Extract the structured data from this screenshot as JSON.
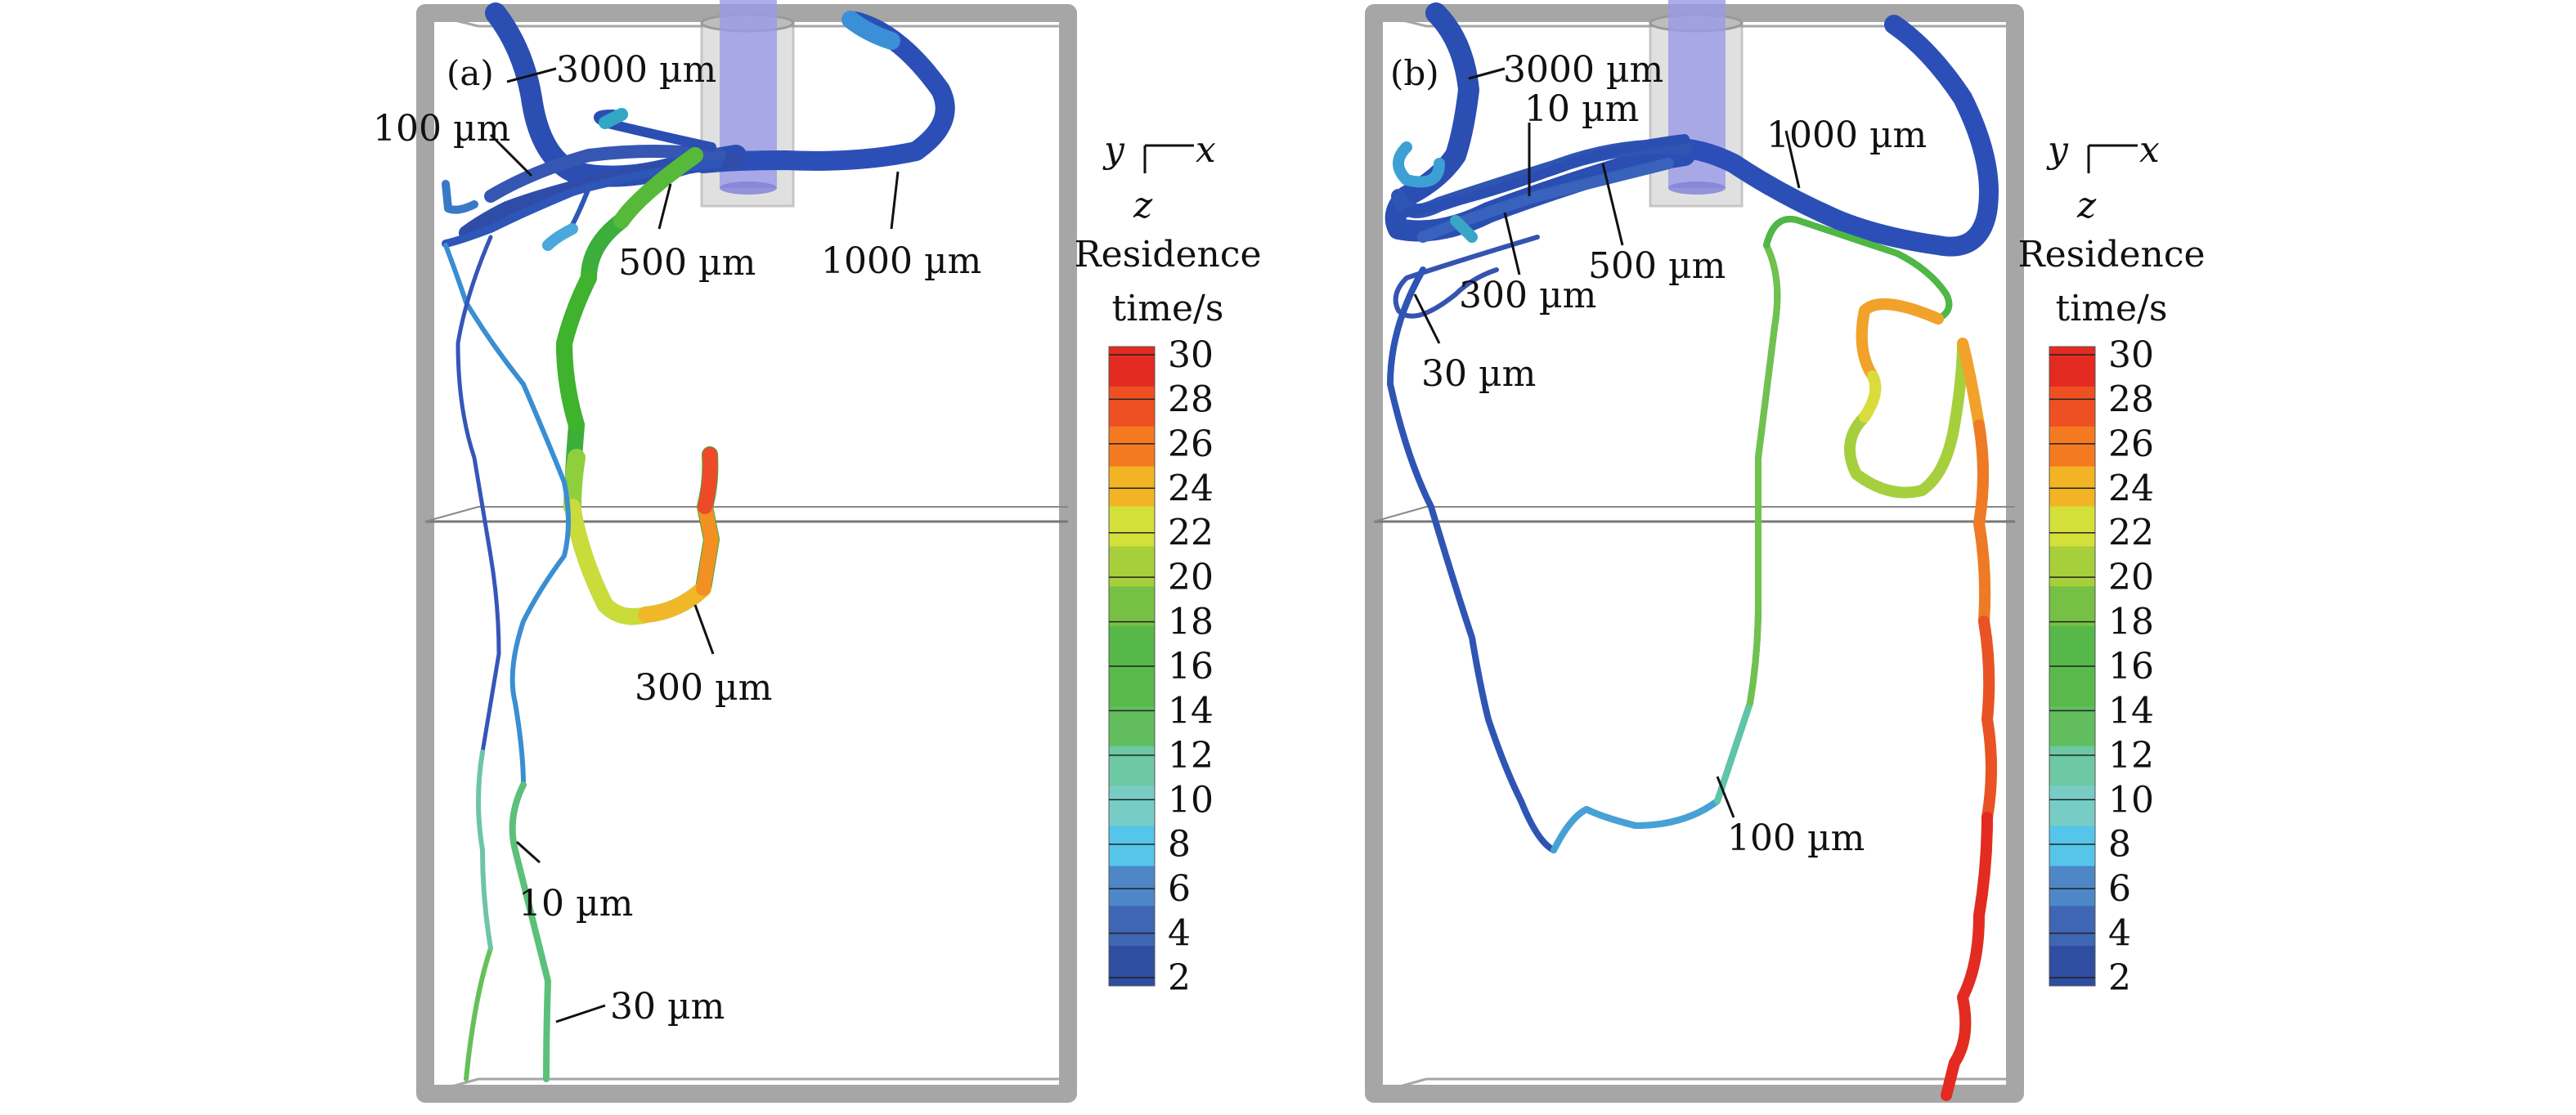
{
  "panels": [
    {
      "tag": "(a)",
      "axes": {
        "x": "x",
        "y": "y",
        "z": "z"
      },
      "colorbar": {
        "title_line1": "Residence",
        "title_line2": "time/s"
      },
      "trajectory_labels": [
        "3000 µm",
        "100 µm",
        "500 µm",
        "1000 µm",
        "300 µm",
        "10 µm",
        "30 µm"
      ]
    },
    {
      "tag": "(b)",
      "axes": {
        "x": "x",
        "y": "y",
        "z": "z"
      },
      "colorbar": {
        "title_line1": "Residence",
        "title_line2": "time/s"
      },
      "trajectory_labels": [
        "3000 µm",
        "10 µm",
        "1000 µm",
        "500 µm",
        "300 µm",
        "30 µm",
        "100 µm"
      ]
    }
  ],
  "colorbar_ticks": [
    "30",
    "28",
    "26",
    "24",
    "22",
    "20",
    "18",
    "16",
    "14",
    "12",
    "10",
    "8",
    "6",
    "4",
    "2"
  ],
  "colorbar_colors": [
    "#e32b22",
    "#ef5023",
    "#f47a22",
    "#f2b424",
    "#d3e03a",
    "#a7cf3b",
    "#76c043",
    "#56b848",
    "#5ab94b",
    "#62bd5e",
    "#6dc8a4",
    "#77cdc6",
    "#55c5ea",
    "#4d87c7",
    "#3f66b3",
    "#2f4da1"
  ],
  "colors": {
    "tank_edge": "#a8a8a8",
    "nozzle": "#a4a4ee",
    "cold_particle": "#2b4eb3"
  }
}
